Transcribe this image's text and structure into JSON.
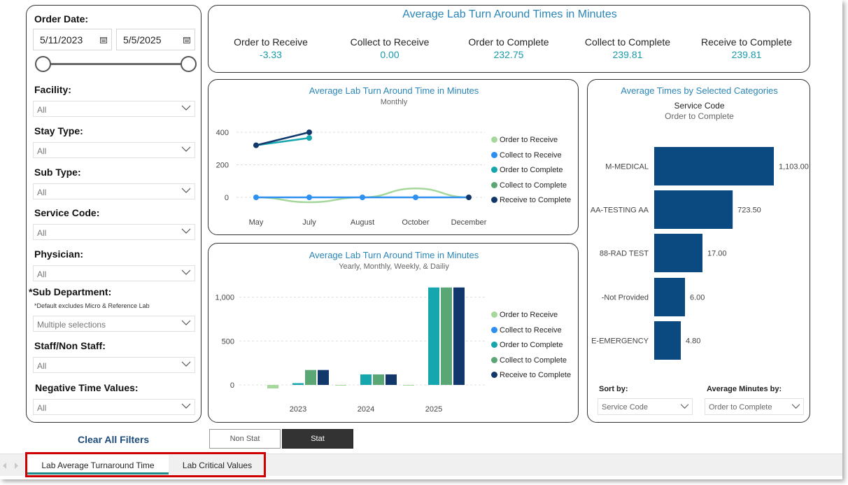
{
  "filters": {
    "order_date_label": "Order Date:",
    "start_date": "5/11/2023",
    "end_date": "5/5/2025",
    "facility": {
      "label": "Facility:",
      "value": "All"
    },
    "stay_type": {
      "label": "Stay Type:",
      "value": "All"
    },
    "sub_type": {
      "label": "Sub Type:",
      "value": "All"
    },
    "service_code": {
      "label": "Service Code:",
      "value": "All"
    },
    "physician": {
      "label": "Physician:",
      "value": "All"
    },
    "sub_department": {
      "label": "*Sub Department:",
      "note": "*Default excludes Micro & Reference Lab",
      "value": "Multiple selections"
    },
    "staff": {
      "label": "Staff/Non Staff:",
      "value": "All"
    },
    "negative": {
      "label": "Negative Time Values:",
      "value": "All"
    },
    "clear_all": "Clear All Filters"
  },
  "kpis": {
    "title": "Average Lab Turn Around Times in Minutes",
    "items": [
      {
        "label": "Order to Receive",
        "value": "-3.33"
      },
      {
        "label": "Collect to Receive",
        "value": "0.00"
      },
      {
        "label": "Order to Complete",
        "value": "232.75"
      },
      {
        "label": "Collect to Complete",
        "value": "239.81"
      },
      {
        "label": "Receive to Complete",
        "value": "239.81"
      }
    ]
  },
  "legend": [
    {
      "name": "Order to Receive",
      "color": "#a5d89a"
    },
    {
      "name": "Collect to Receive",
      "color": "#2d8ff0"
    },
    {
      "name": "Order to Complete",
      "color": "#16a6ad"
    },
    {
      "name": "Collect to Complete",
      "color": "#5aa775"
    },
    {
      "name": "Receive to Complete",
      "color": "#12386b"
    }
  ],
  "chart_data": [
    {
      "type": "line",
      "title": "Average Lab Turn Around Time in Minutes",
      "subtitle": "Monthly",
      "categories": [
        "May",
        "July",
        "August",
        "October",
        "December"
      ],
      "yticks": [
        "400",
        "200",
        "0"
      ],
      "ylim": [
        -60,
        440
      ],
      "series": [
        {
          "name": "Order to Receive",
          "values": [
            0,
            -30,
            0,
            55,
            0
          ]
        },
        {
          "name": "Collect to Receive",
          "values": [
            0,
            0,
            0,
            0,
            0
          ]
        },
        {
          "name": "Order to Complete",
          "values": [
            320,
            365,
            null,
            null,
            null
          ]
        },
        {
          "name": "Collect to Complete",
          "values": [
            null,
            null,
            null,
            null,
            null
          ]
        },
        {
          "name": "Receive to Complete",
          "values": [
            320,
            400,
            null,
            null,
            0
          ]
        }
      ]
    },
    {
      "type": "bar",
      "title": "Average Lab Turn Around Time in Minutes",
      "subtitle": "Yearly, Monthly, Weekly, & Dailiy",
      "categories": [
        "2023",
        "2024",
        "2025"
      ],
      "yticks": [
        "1,000",
        "500",
        "0"
      ],
      "ylim": [
        0,
        1100
      ],
      "series": [
        {
          "name": "Order to Receive",
          "values": [
            -40,
            -5,
            -3
          ]
        },
        {
          "name": "Collect to Receive",
          "values": [
            0,
            0,
            0
          ]
        },
        {
          "name": "Order to Complete",
          "values": [
            20,
            120,
            1110
          ]
        },
        {
          "name": "Collect to Complete",
          "values": [
            170,
            120,
            1110
          ]
        },
        {
          "name": "Receive to Complete",
          "values": [
            170,
            120,
            1110
          ]
        }
      ]
    },
    {
      "type": "bar",
      "orientation": "horizontal",
      "title": "Average Times by Selected Categories",
      "subtitle1": "Service Code",
      "subtitle2": "Order to Complete",
      "categories": [
        "M-MEDICAL",
        "AA-TESTING AA",
        "88-RAD TEST",
        "-Not Provided",
        "E-EMERGENCY"
      ],
      "values": [
        1103.0,
        723.5,
        17.0,
        6.0,
        4.8
      ],
      "labels": [
        "1,103.00",
        "723.50",
        "17.00",
        "6.00",
        "4.80"
      ]
    }
  ],
  "category_controls": {
    "sort_label": "Sort by:",
    "sort_value": "Service Code",
    "avg_label": "Average Minutes by:",
    "avg_value": "Order to Complete"
  },
  "toggle": {
    "non_stat": "Non Stat",
    "stat": "Stat"
  },
  "tabs": [
    "Lab Average Turnaround Time",
    "Lab Critical Values"
  ]
}
